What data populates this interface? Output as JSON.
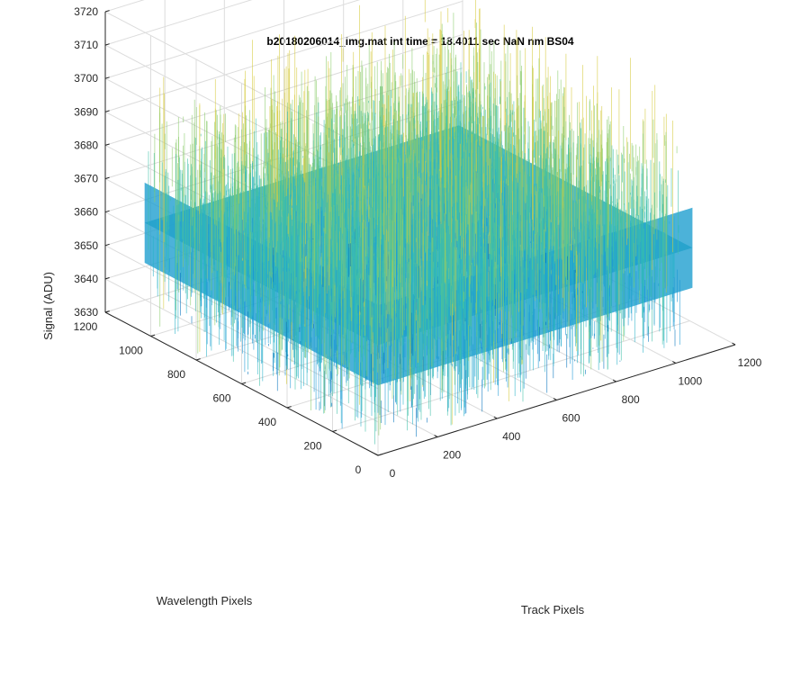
{
  "chart_data": {
    "type": "surface",
    "title": "b20180206014_img.mat int time = 18.4011 sec  NaN nm BS04",
    "xlabel": "Track Pixels",
    "ylabel": "Wavelength Pixels",
    "zlabel": "Signal (ADU)",
    "xlim": [
      0,
      1200
    ],
    "ylim": [
      0,
      1200
    ],
    "zlim": [
      3630,
      3720
    ],
    "xticks": [
      0,
      200,
      400,
      600,
      800,
      1000,
      1200
    ],
    "yticks": [
      0,
      200,
      400,
      600,
      800,
      1000,
      1200
    ],
    "zticks": [
      3630,
      3640,
      3650,
      3660,
      3670,
      3680,
      3690,
      3700,
      3710,
      3720
    ],
    "data_extent": {
      "x": [
        0,
        1056
      ],
      "y": [
        0,
        1027
      ]
    },
    "signal_mean": 3663,
    "signal_noise_range": [
      3632,
      3712
    ],
    "grid": true,
    "colormap": [
      "#0072bd",
      "#1a98d6",
      "#27b2c8",
      "#3ec0a8",
      "#8ccc6c",
      "#d7cb3e"
    ]
  }
}
